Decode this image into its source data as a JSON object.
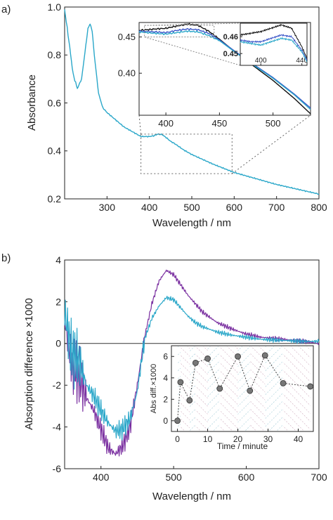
{
  "colors": {
    "cyan": "#2aa7c9",
    "purple": "#7a2fa0",
    "blue": "#3a55c8",
    "black": "#111111",
    "gray": "#555555"
  },
  "chart_data": [
    {
      "panel_label": "a)",
      "type": "line",
      "xlabel": "Wavelength / nm",
      "ylabel": "Absorbance",
      "xlim": [
        200,
        800
      ],
      "ylim": [
        0.2,
        1.0
      ],
      "xticks": [
        300,
        400,
        500,
        600,
        700,
        800
      ],
      "yticks": [
        0.2,
        0.4,
        0.6,
        0.8,
        1.0
      ],
      "series": [
        {
          "color": "#2aa7c9",
          "x": [
            200,
            210,
            220,
            230,
            240,
            250,
            255,
            260,
            265,
            270,
            280,
            290,
            300,
            320,
            340,
            360,
            380,
            400,
            410,
            420,
            430,
            440,
            450,
            460,
            480,
            500,
            550,
            600,
            650,
            700,
            750,
            800
          ],
          "y": [
            0.99,
            0.86,
            0.72,
            0.66,
            0.7,
            0.84,
            0.91,
            0.93,
            0.9,
            0.8,
            0.64,
            0.58,
            0.56,
            0.53,
            0.5,
            0.48,
            0.46,
            0.46,
            0.463,
            0.47,
            0.468,
            0.455,
            0.44,
            0.43,
            0.405,
            0.385,
            0.345,
            0.31,
            0.285,
            0.26,
            0.24,
            0.22
          ]
        }
      ],
      "zoom_box": {
        "x": [
          380,
          595
        ],
        "y": [
          0.305,
          0.47
        ]
      },
      "inset": {
        "xlim": [
          375,
          535
        ],
        "ylim": [
          0.342,
          0.47
        ],
        "xticks": [
          400,
          450,
          500
        ],
        "yticks": [
          0.4,
          0.45
        ],
        "series": [
          {
            "color": "#111111",
            "x": [
              375,
              390,
              400,
              410,
              420,
              430,
              440,
              450,
              460,
              480,
              500,
              520,
              535
            ],
            "y": [
              0.459,
              0.461,
              0.462,
              0.465,
              0.468,
              0.466,
              0.458,
              0.447,
              0.435,
              0.412,
              0.39,
              0.365,
              0.344
            ]
          },
          {
            "color": "#3a55c8",
            "x": [
              375,
              390,
              400,
              410,
              420,
              430,
              440,
              450,
              460,
              480,
              500,
              520,
              535
            ],
            "y": [
              0.458,
              0.457,
              0.456,
              0.459,
              0.461,
              0.46,
              0.455,
              0.446,
              0.435,
              0.414,
              0.394,
              0.371,
              0.352
            ]
          },
          {
            "color": "#2aa7c9",
            "x": [
              375,
              390,
              400,
              410,
              420,
              430,
              440,
              450,
              460,
              480,
              500,
              520,
              535
            ],
            "y": [
              0.457,
              0.455,
              0.454,
              0.456,
              0.458,
              0.457,
              0.452,
              0.445,
              0.434,
              0.413,
              0.393,
              0.37,
              0.35
            ]
          }
        ],
        "zoom": {
          "xlim": [
            380,
            445
          ],
          "ylim": [
            0.443,
            0.468
          ],
          "xticks": [
            400,
            440
          ],
          "yticks": [
            0.45,
            0.46
          ],
          "series": [
            {
              "color": "#111111",
              "x": [
                380,
                390,
                400,
                410,
                420,
                430,
                440,
                445
              ],
              "y": [
                0.461,
                0.462,
                0.463,
                0.465,
                0.467,
                0.465,
                0.454,
                0.447
              ]
            },
            {
              "color": "#3a55c8",
              "x": [
                380,
                390,
                400,
                410,
                420,
                430,
                440,
                445
              ],
              "y": [
                0.458,
                0.457,
                0.457,
                0.459,
                0.461,
                0.46,
                0.452,
                0.446
              ]
            },
            {
              "color": "#2aa7c9",
              "x": [
                380,
                390,
                400,
                410,
                420,
                430,
                440,
                445
              ],
              "y": [
                0.457,
                0.456,
                0.455,
                0.457,
                0.459,
                0.458,
                0.451,
                0.445
              ]
            }
          ]
        }
      }
    },
    {
      "panel_label": "b)",
      "type": "line",
      "xlabel": "Wavelength / nm",
      "ylabel": "Absorption difference ×1000",
      "xlim": [
        350,
        700
      ],
      "ylim": [
        -6,
        4
      ],
      "xticks": [
        400,
        500,
        600,
        700
      ],
      "yticks": [
        -6,
        -4,
        -2,
        0,
        2,
        4
      ],
      "series": [
        {
          "color": "#7a2fa0",
          "x": [
            350,
            360,
            370,
            380,
            390,
            400,
            410,
            420,
            430,
            440,
            450,
            460,
            470,
            480,
            490,
            500,
            510,
            520,
            530,
            540,
            560,
            580,
            600,
            620,
            650,
            680,
            700
          ],
          "y": [
            1.0,
            -1.0,
            -1.5,
            -2.6,
            -3.2,
            -4.1,
            -5.0,
            -5.3,
            -4.9,
            -4.0,
            -2.0,
            0.3,
            1.9,
            3.0,
            3.5,
            3.3,
            2.8,
            2.3,
            1.9,
            1.5,
            1.0,
            0.7,
            0.45,
            0.3,
            0.2,
            0.1,
            0.0
          ]
        },
        {
          "color": "#2aa7c9",
          "x": [
            350,
            360,
            370,
            380,
            390,
            400,
            410,
            420,
            430,
            440,
            450,
            460,
            470,
            480,
            490,
            500,
            510,
            520,
            530,
            540,
            560,
            580,
            600,
            620,
            650,
            680,
            700
          ],
          "y": [
            1.5,
            -0.5,
            -0.8,
            -2.0,
            -2.5,
            -3.2,
            -3.8,
            -4.2,
            -4.1,
            -3.6,
            -2.3,
            0.2,
            1.2,
            1.8,
            2.2,
            2.1,
            1.7,
            1.3,
            1.0,
            0.8,
            0.55,
            0.4,
            0.3,
            0.2,
            0.15,
            0.1,
            0.1
          ]
        }
      ],
      "inset": {
        "type": "scatter",
        "xlabel": "Time / minute",
        "ylabel": "Abs diff.×1000",
        "xlim": [
          -2,
          45
        ],
        "ylim": [
          -1,
          7
        ],
        "xticks": [
          0,
          10,
          20,
          30,
          40
        ],
        "yticks": [
          0,
          2,
          4,
          6
        ],
        "x": [
          0,
          1,
          4,
          6,
          10,
          14,
          20,
          24,
          29,
          35,
          44
        ],
        "y": [
          0.0,
          3.6,
          1.9,
          5.4,
          5.8,
          3.0,
          6.0,
          2.8,
          6.1,
          3.5,
          3.2
        ]
      }
    }
  ]
}
